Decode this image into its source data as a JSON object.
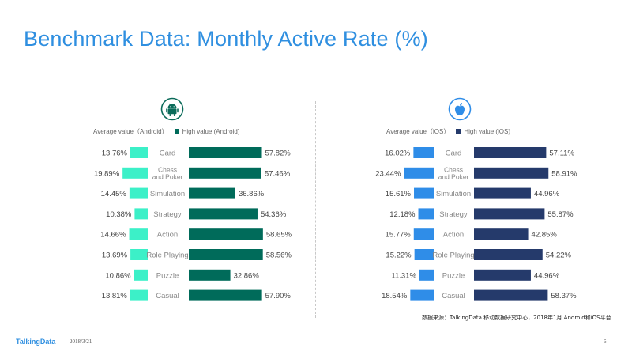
{
  "title": "Benchmark Data: Monthly Active Rate (%)",
  "colors": {
    "android_avg": "#3cf0c8",
    "android_high": "#006b5a",
    "ios_avg": "#2f8de8",
    "ios_high": "#253a6b",
    "title": "#2f8fe0"
  },
  "android": {
    "icon": "android-icon",
    "legend_avg": "Average value（Android）",
    "legend_high": "High value (Android)"
  },
  "ios": {
    "icon": "apple-icon",
    "legend_avg": "Average value（iOS）",
    "legend_high": "High value (iOS)"
  },
  "chart_data": [
    {
      "type": "bar",
      "panel": "android",
      "categories": [
        "Card",
        "Chess and Poker",
        "Simulation",
        "Strategy",
        "Action",
        "Role Playing",
        "Puzzle",
        "Casual"
      ],
      "category_lines": [
        [
          "Card"
        ],
        [
          "Chess",
          "and Poker"
        ],
        [
          "Simulation"
        ],
        [
          "Strategy"
        ],
        [
          "Action"
        ],
        [
          "Role Playing"
        ],
        [
          "Puzzle"
        ],
        [
          "Casual"
        ]
      ],
      "series": [
        {
          "name": "Average value（Android）",
          "values": [
            13.76,
            19.89,
            14.45,
            10.38,
            14.66,
            13.69,
            10.86,
            13.81
          ],
          "labels": [
            "13.76%",
            "19.89%",
            "14.45%",
            "10.38%",
            "14.66%",
            "13.69%",
            "10.86%",
            "13.81%"
          ]
        },
        {
          "name": "High value (Android)",
          "values": [
            57.82,
            57.46,
            36.86,
            54.36,
            58.65,
            58.56,
            32.86,
            57.9
          ],
          "labels": [
            "57.82%",
            "57.46%",
            "36.86%",
            "54.36%",
            "58.65%",
            "58.56%",
            "32.86%",
            "57.90%"
          ]
        }
      ]
    },
    {
      "type": "bar",
      "panel": "ios",
      "categories": [
        "Card",
        "Chess and Poker",
        "Simulation",
        "Strategy",
        "Action",
        "Role Playing",
        "Puzzle",
        "Casual"
      ],
      "category_lines": [
        [
          "Card"
        ],
        [
          "Chess",
          "and Poker"
        ],
        [
          "Simulation"
        ],
        [
          "Strategy"
        ],
        [
          "Action"
        ],
        [
          "Role Playing"
        ],
        [
          "Puzzle"
        ],
        [
          "Casual"
        ]
      ],
      "series": [
        {
          "name": "Average value（iOS）",
          "values": [
            16.02,
            23.44,
            15.61,
            12.18,
            15.77,
            15.22,
            11.31,
            18.54
          ],
          "labels": [
            "16.02%",
            "23.44%",
            "15.61%",
            "12.18%",
            "15.77%",
            "15.22%",
            "11.31%",
            "18.54%"
          ]
        },
        {
          "name": "High value (iOS)",
          "values": [
            57.11,
            58.91,
            44.96,
            55.87,
            42.85,
            54.22,
            44.96,
            58.37
          ],
          "labels": [
            "57.11%",
            "58.91%",
            "44.96%",
            "55.87%",
            "42.85%",
            "54.22%",
            "44.96%",
            "58.37%"
          ]
        }
      ]
    }
  ],
  "source": "数据来源：TalkingData 移动数据研究中心，2018年1月 Android和iOS平台",
  "footer": {
    "brand": "TalkingData",
    "date": "2018/3/21",
    "page": "6"
  }
}
